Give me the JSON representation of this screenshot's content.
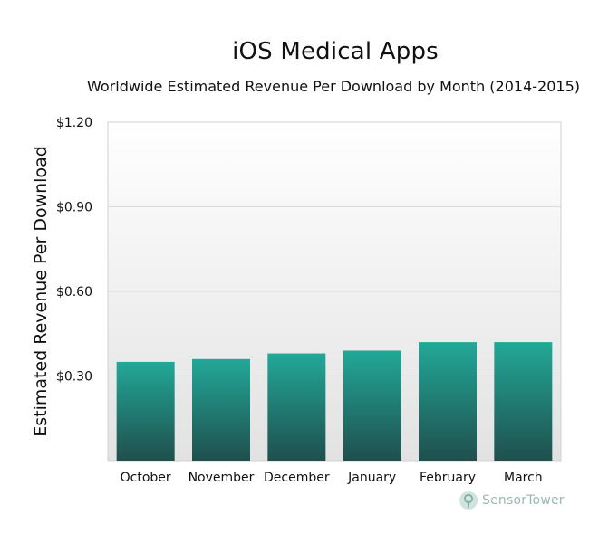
{
  "chart_data": {
    "type": "bar",
    "title": "iOS Medical Apps",
    "subtitle": "Worldwide Estimated Revenue Per Download by Month (2014-2015)",
    "xlabel": "",
    "ylabel": "Estimated Revenue Per Download",
    "categories": [
      "October",
      "November",
      "December",
      "January",
      "February",
      "March"
    ],
    "values": [
      0.35,
      0.36,
      0.38,
      0.39,
      0.42,
      0.42
    ],
    "ylim": [
      0,
      1.2
    ],
    "yticks": [
      0.3,
      0.6,
      0.9,
      1.2
    ],
    "ytick_labels": [
      "$0.30",
      "$0.60",
      "$0.90",
      "$1.20"
    ],
    "grid": true,
    "colors": {
      "bar_top": "#22a898",
      "bar_bottom": "#1f4f4d",
      "plot_bg_top": "#ffffff",
      "plot_bg_bottom": "#e2e2e2",
      "grid": "#d8d8d8"
    }
  },
  "branding": {
    "logo_text": "SensorTower",
    "logo_icon": "sensor-tower-icon"
  }
}
